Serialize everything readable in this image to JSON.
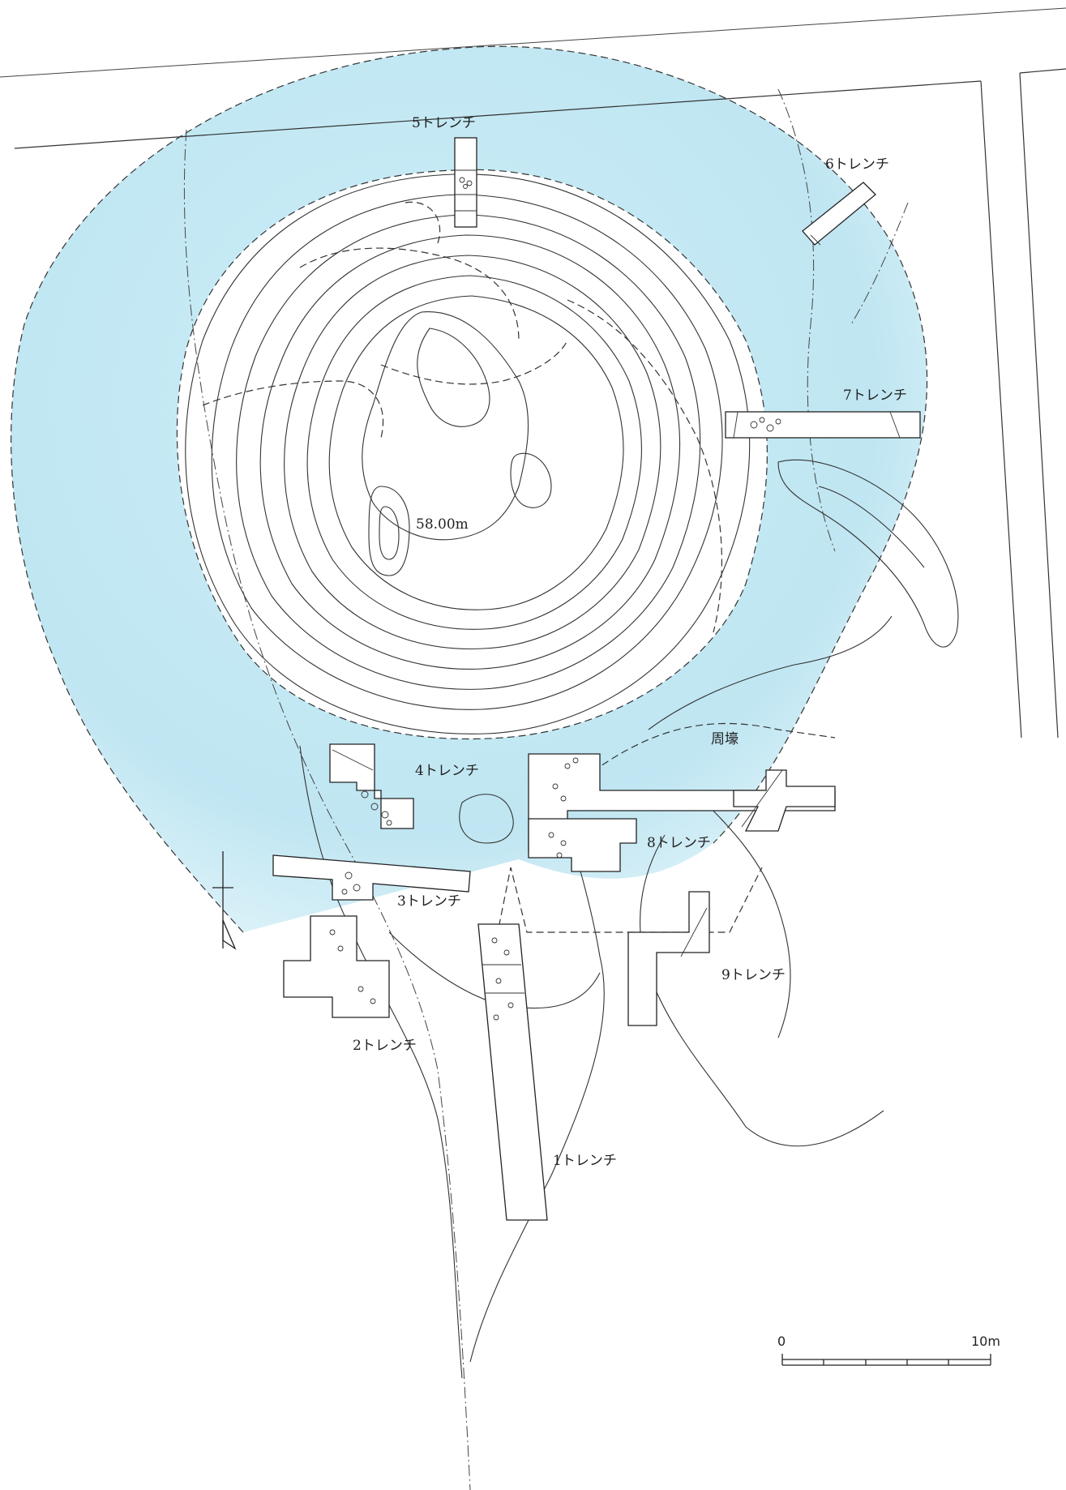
{
  "map": {
    "elevation_label": "58.00m",
    "moat_label": "周壕",
    "moat_color": "#bfe6f2",
    "scale_bar": {
      "zero_label": "0",
      "end_label": "10m"
    },
    "trenches": [
      {
        "id": "t1",
        "label": "1トレンチ"
      },
      {
        "id": "t2",
        "label": "2トレンチ"
      },
      {
        "id": "t3",
        "label": "3トレンチ"
      },
      {
        "id": "t4",
        "label": "4トレンチ"
      },
      {
        "id": "t5",
        "label": "5トレンチ"
      },
      {
        "id": "t6",
        "label": "6トレンチ"
      },
      {
        "id": "t7",
        "label": "7トレンチ"
      },
      {
        "id": "t8",
        "label": "8トレンチ"
      },
      {
        "id": "t9",
        "label": "9トレンチ"
      }
    ]
  }
}
